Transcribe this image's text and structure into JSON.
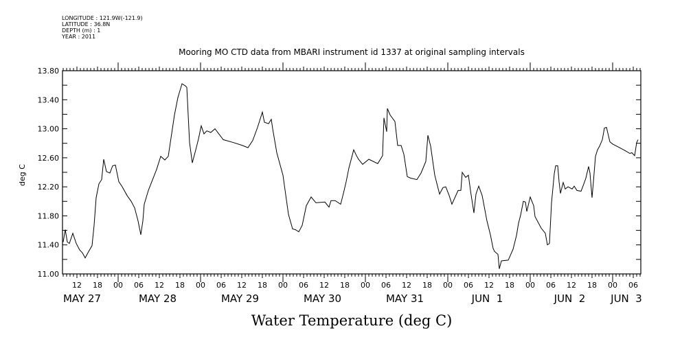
{
  "header": {
    "longitude": "LONGITUDE : 121.9W(-121.9)",
    "latitude": "LATITUDE : 36.8N",
    "depth": "DEPTH (m) : 1",
    "year": "YEAR : 2011"
  },
  "chart_data": {
    "type": "line",
    "title": "Mooring MO CTD data from MBARI instrument id 1337 at original sampling intervals",
    "xlabel": "Water Temperature (deg C)",
    "ylabel": "deg C",
    "x_unit": "hours since MAY 27 00:00",
    "xlim": [
      7.8,
      176.2
    ],
    "ylim": [
      11.0,
      13.8
    ],
    "yticks": [
      "11.00",
      "11.40",
      "11.80",
      "12.20",
      "12.60",
      "13.00",
      "13.40",
      "13.80"
    ],
    "hour_ticks": [
      {
        "h": 12,
        "label": "12"
      },
      {
        "h": 18,
        "label": "18"
      },
      {
        "h": 24,
        "label": "00"
      },
      {
        "h": 30,
        "label": "06"
      },
      {
        "h": 36,
        "label": "12"
      },
      {
        "h": 42,
        "label": "18"
      },
      {
        "h": 48,
        "label": "00"
      },
      {
        "h": 54,
        "label": "06"
      },
      {
        "h": 60,
        "label": "12"
      },
      {
        "h": 66,
        "label": "18"
      },
      {
        "h": 72,
        "label": "00"
      },
      {
        "h": 78,
        "label": "06"
      },
      {
        "h": 84,
        "label": "12"
      },
      {
        "h": 90,
        "label": "18"
      },
      {
        "h": 96,
        "label": "00"
      },
      {
        "h": 102,
        "label": "06"
      },
      {
        "h": 108,
        "label": "12"
      },
      {
        "h": 114,
        "label": "18"
      },
      {
        "h": 120,
        "label": "00"
      },
      {
        "h": 126,
        "label": "06"
      },
      {
        "h": 132,
        "label": "12"
      },
      {
        "h": 138,
        "label": "18"
      },
      {
        "h": 144,
        "label": "00"
      },
      {
        "h": 150,
        "label": "06"
      },
      {
        "h": 156,
        "label": "12"
      },
      {
        "h": 162,
        "label": "18"
      },
      {
        "h": 168,
        "label": "00"
      },
      {
        "h": 174,
        "label": "06"
      }
    ],
    "day_labels": [
      {
        "h": 13.5,
        "label": "MAY 27"
      },
      {
        "h": 35.5,
        "label": "MAY 28"
      },
      {
        "h": 59.5,
        "label": "MAY 29"
      },
      {
        "h": 83.5,
        "label": "MAY 30"
      },
      {
        "h": 107.5,
        "label": "MAY 31"
      },
      {
        "h": 131.5,
        "label": "JUN  1"
      },
      {
        "h": 155.5,
        "label": "JUN  2"
      },
      {
        "h": 172,
        "label": "JUN  3"
      }
    ],
    "series": [
      {
        "name": "Water Temperature",
        "color": "#000000",
        "x": [
          8.0,
          8.6,
          9.2,
          9.8,
          10.8,
          11.8,
          12.8,
          13.6,
          14.4,
          15.2,
          16.4,
          17.0,
          17.6,
          18.4,
          19.2,
          19.8,
          20.6,
          21.6,
          22.4,
          23.2,
          24.2,
          25.2,
          26.6,
          27.8,
          28.8,
          29.8,
          30.6,
          31.2,
          31.6,
          32.8,
          35.2,
          36.4,
          37.6,
          38.6,
          39.2,
          40.4,
          41.4,
          42.6,
          43.6,
          44.0,
          44.4,
          44.8,
          45.6,
          46.6,
          47.4,
          48.2,
          49.0,
          49.8,
          51.0,
          52.2,
          54.6,
          57.6,
          60.2,
          61.8,
          63.2,
          64.6,
          66.0,
          66.6,
          67.8,
          68.6,
          69.0,
          70.2,
          72.0,
          73.6,
          74.8,
          75.6,
          76.6,
          77.6,
          78.8,
          80.2,
          81.6,
          84.2,
          85.4,
          86.0,
          87.2,
          88.8,
          89.6,
          90.4,
          91.2,
          92.6,
          93.4,
          94.0,
          95.2,
          97.0,
          99.6,
          101.0,
          101.4,
          102.2,
          102.4,
          103.2,
          104.6,
          105.4,
          106.4,
          107.2,
          108.2,
          109.2,
          111.0,
          112.2,
          113.6,
          114.2,
          115.0,
          116.2,
          117.6,
          118.6,
          119.4,
          120.4,
          121.2,
          123.0,
          123.8,
          124.2,
          125.2,
          126.0,
          126.6,
          127.6,
          128.2,
          129.0,
          130.0,
          131.4,
          132.4,
          133.2,
          133.6,
          134.6,
          135.0,
          135.6,
          137.6,
          139.0,
          140.0,
          140.6,
          141.2,
          142.0,
          142.6,
          143.0,
          144.0,
          145.0,
          145.4,
          147.2,
          148.4,
          149.0,
          149.6,
          150.2,
          151.0,
          151.4,
          152.0,
          152.4,
          152.8,
          153.6,
          154.2,
          155.0,
          156.2,
          156.8,
          157.6,
          158.8,
          159.6,
          160.2,
          161.0,
          161.4,
          162.0,
          162.4,
          163.0,
          163.6,
          164.2,
          165.0,
          165.6,
          166.2,
          167.2,
          168.0,
          170.0,
          171.6,
          173.0,
          173.6,
          174.4,
          175.0,
          175.4
        ],
        "y": [
          11.44,
          11.61,
          11.44,
          11.42,
          11.56,
          11.42,
          11.33,
          11.29,
          11.22,
          11.29,
          11.39,
          11.67,
          12.05,
          12.24,
          12.3,
          12.58,
          12.41,
          12.39,
          12.49,
          12.5,
          12.27,
          12.2,
          12.08,
          12.0,
          11.91,
          11.73,
          11.54,
          11.73,
          11.96,
          12.15,
          12.44,
          12.62,
          12.57,
          12.62,
          12.81,
          13.19,
          13.43,
          13.62,
          13.59,
          13.57,
          13.19,
          12.81,
          12.53,
          12.71,
          12.86,
          13.04,
          12.93,
          12.97,
          12.95,
          13.0,
          12.85,
          12.81,
          12.77,
          12.74,
          12.84,
          13.02,
          13.23,
          13.09,
          13.07,
          13.13,
          13.0,
          12.67,
          12.36,
          11.82,
          11.62,
          11.61,
          11.58,
          11.67,
          11.94,
          12.06,
          11.98,
          11.99,
          11.92,
          12.01,
          12.01,
          11.96,
          12.11,
          12.27,
          12.46,
          12.71,
          12.63,
          12.58,
          12.51,
          12.58,
          12.52,
          12.63,
          13.15,
          12.96,
          13.28,
          13.19,
          13.1,
          12.77,
          12.77,
          12.65,
          12.34,
          12.32,
          12.3,
          12.39,
          12.55,
          12.91,
          12.76,
          12.36,
          12.1,
          12.19,
          12.2,
          12.08,
          11.96,
          12.15,
          12.15,
          12.4,
          12.33,
          12.36,
          12.15,
          11.84,
          12.1,
          12.21,
          12.08,
          11.73,
          11.54,
          11.35,
          11.31,
          11.27,
          11.07,
          11.18,
          11.19,
          11.34,
          11.53,
          11.7,
          11.81,
          12.0,
          11.99,
          11.86,
          12.06,
          11.94,
          11.79,
          11.63,
          11.56,
          11.4,
          11.42,
          11.98,
          12.38,
          12.49,
          12.49,
          12.27,
          12.11,
          12.26,
          12.17,
          12.2,
          12.17,
          12.21,
          12.15,
          12.14,
          12.24,
          12.32,
          12.48,
          12.39,
          12.05,
          12.27,
          12.62,
          12.71,
          12.76,
          12.85,
          13.01,
          13.02,
          12.82,
          12.79,
          12.74,
          12.7,
          12.66,
          12.67,
          12.63,
          12.81,
          12.85
        ]
      }
    ]
  }
}
